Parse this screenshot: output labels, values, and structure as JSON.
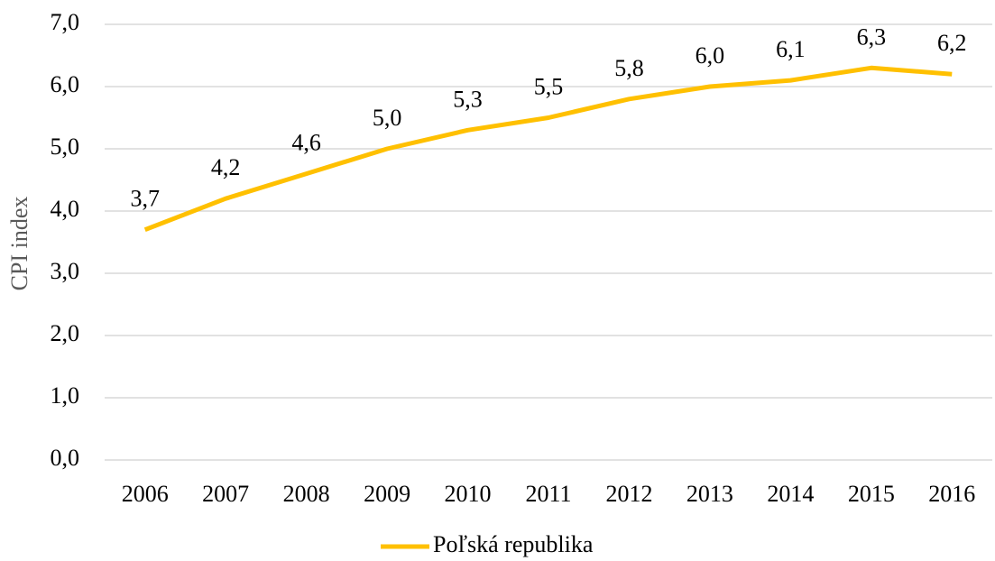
{
  "chart_data": {
    "type": "line",
    "y_label": "CPI index",
    "categories": [
      "2006",
      "2007",
      "2008",
      "2009",
      "2010",
      "2011",
      "2012",
      "2013",
      "2014",
      "2015",
      "2016"
    ],
    "series": [
      {
        "name": "Poľská republika",
        "color": "#ffc000",
        "values": [
          3.7,
          4.2,
          4.6,
          5.0,
          5.3,
          5.5,
          5.8,
          6.0,
          6.1,
          6.3,
          6.2
        ],
        "value_labels": [
          "3,7",
          "4,2",
          "4,6",
          "5,0",
          "5,3",
          "5,5",
          "5,8",
          "6,0",
          "6,1",
          "6,3",
          "6,2"
        ]
      }
    ],
    "ylim": [
      0,
      7
    ],
    "yticks": [
      {
        "value": 0,
        "label": "0,0"
      },
      {
        "value": 1,
        "label": "1,0"
      },
      {
        "value": 2,
        "label": "2,0"
      },
      {
        "value": 3,
        "label": "3,0"
      },
      {
        "value": 4,
        "label": "4,0"
      },
      {
        "value": 5,
        "label": "5,0"
      },
      {
        "value": 6,
        "label": "6,0"
      },
      {
        "value": 7,
        "label": "7,0"
      }
    ],
    "grid": true,
    "legend": "bottom"
  }
}
